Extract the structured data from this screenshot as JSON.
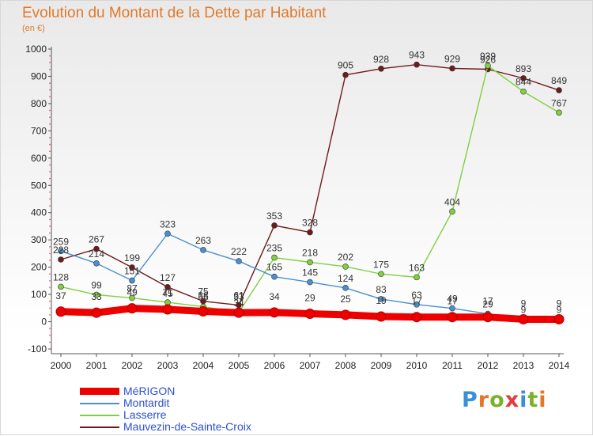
{
  "title": "Evolution du Montant de la Dette par Habitant",
  "subtitle": "(en €)",
  "logo_text": "Proxiti",
  "logo_colors": [
    "#3a8fd8",
    "#e8742a",
    "#79b32b",
    "#e23b3b",
    "#3a8fd8",
    "#79b32b",
    "#e8742a"
  ],
  "chart_data": {
    "type": "line",
    "title": "Evolution du Montant de la Dette par Habitant",
    "ylabel": "(en €)",
    "x": [
      "2000",
      "2001",
      "2002",
      "2003",
      "2004",
      "2005",
      "2006",
      "2007",
      "2008",
      "2009",
      "2010",
      "2011",
      "2012",
      "2013",
      "2014"
    ],
    "ylim": [
      -100,
      1000
    ],
    "yticks": [
      "-100",
      "0",
      "100",
      "200",
      "300",
      "400",
      "500",
      "600",
      "700",
      "800",
      "900",
      "1000"
    ],
    "grid": false,
    "legend_position": "bottom-left",
    "series": [
      {
        "name": "MéRIGON",
        "color": "#ee0000",
        "values": [
          37,
          33,
          49,
          45,
          38,
          33,
          34,
          29,
          25,
          19,
          17,
          17,
          17,
          9,
          9
        ],
        "labels": [
          "37",
          "33",
          "49",
          "45",
          "38",
          "33",
          "34",
          "29",
          "25",
          "19",
          "17",
          "17",
          "17",
          "9",
          "9"
        ]
      },
      {
        "name": "Montardit",
        "color": "#4a8fcf",
        "values": [
          259,
          214,
          151,
          323,
          263,
          222,
          165,
          145,
          124,
          83,
          63,
          49,
          29,
          9,
          9
        ],
        "labels": [
          "259",
          "214",
          "151",
          "323",
          "263",
          "222",
          "165",
          "145",
          "124",
          "83",
          "63",
          "49",
          "29",
          "9",
          "9"
        ]
      },
      {
        "name": "Lasserre",
        "color": "#80d040",
        "values": [
          128,
          99,
          87,
          71,
          55,
          34,
          235,
          218,
          202,
          175,
          163,
          404,
          939,
          844,
          767
        ],
        "labels": [
          "128",
          "99",
          "87",
          "71",
          "55",
          "34",
          "235",
          "218",
          "202",
          "175",
          "163",
          "404",
          "939",
          "844",
          "767"
        ]
      },
      {
        "name": "Mauvezin-de-Sainte-Croix",
        "color": "#6e1b1b",
        "values": [
          228,
          267,
          199,
          127,
          75,
          61,
          353,
          328,
          905,
          928,
          943,
          929,
          926,
          893,
          849
        ],
        "labels": [
          "228",
          "267",
          "199",
          "127",
          "75",
          "61",
          "353",
          "328",
          "905",
          "928",
          "943",
          "929",
          "926",
          "893",
          "849"
        ]
      }
    ]
  }
}
